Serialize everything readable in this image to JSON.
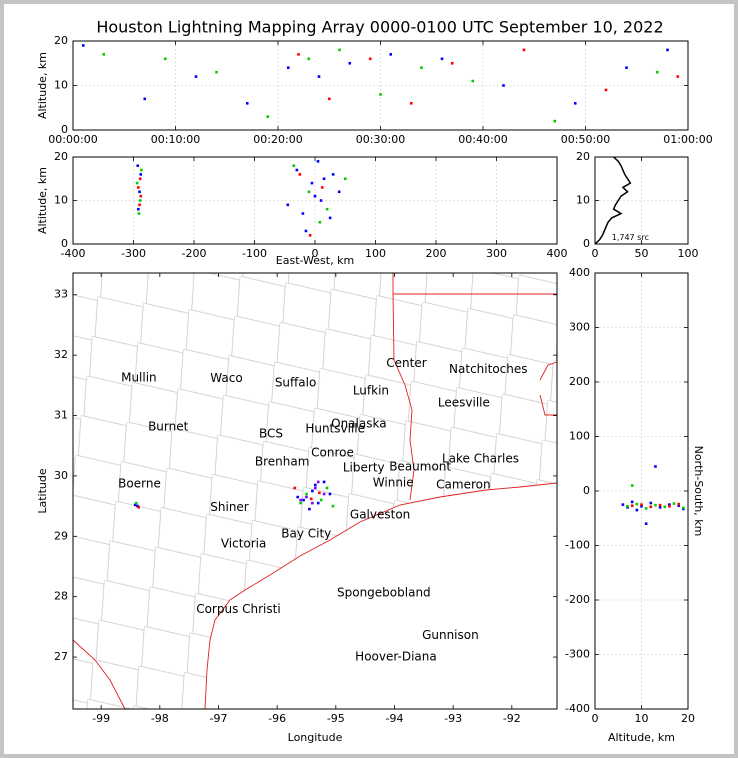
{
  "title": "Houston Lightning Mapping Array 0000-0100 UTC September 10, 2022",
  "chart_data": [
    {
      "type": "scatter",
      "ylabel": "Altitude, km",
      "grid": true,
      "xlim": [
        0,
        60
      ],
      "xticks": [
        {
          "value": 0,
          "label": "00:00:00"
        },
        {
          "value": 10,
          "label": "00:10:00"
        },
        {
          "value": 20,
          "label": "00:20:00"
        },
        {
          "value": 30,
          "label": "00:30:00"
        },
        {
          "value": 40,
          "label": "00:40:00"
        },
        {
          "value": 50,
          "label": "00:50:00"
        },
        {
          "value": 60,
          "label": "01:00:00"
        }
      ],
      "ylim": [
        0,
        20
      ],
      "yticks": [
        0,
        10,
        20
      ],
      "series": [
        {
          "color": "#0000ff",
          "x": [
            1,
            7,
            12,
            17,
            21,
            24,
            27,
            31,
            36,
            42,
            49,
            54,
            58
          ],
          "y": [
            19,
            7,
            12,
            6,
            14,
            12,
            15,
            17,
            16,
            10,
            6,
            14,
            18
          ]
        },
        {
          "color": "#00cc00",
          "x": [
            3,
            9,
            14,
            19,
            23,
            26,
            30,
            34,
            39,
            47,
            57
          ],
          "y": [
            17,
            16,
            13,
            3,
            16,
            18,
            8,
            14,
            11,
            2,
            13
          ]
        },
        {
          "color": "#ff0000",
          "x": [
            22,
            25,
            29,
            33,
            37,
            44,
            52,
            59
          ],
          "y": [
            17,
            7,
            16,
            6,
            15,
            18,
            9,
            12
          ]
        }
      ]
    },
    {
      "type": "scatter",
      "xlabel": "East-West, km",
      "ylabel": "Altitude, km",
      "grid": true,
      "xlim": [
        -400,
        400
      ],
      "xticks": [
        -400,
        -300,
        -200,
        -100,
        0,
        100,
        200,
        300,
        400
      ],
      "ylim": [
        0,
        20
      ],
      "yticks": [
        0,
        10,
        20
      ],
      "series": [
        {
          "color": "#0000ff",
          "x": [
            -292,
            -290,
            -288,
            -293,
            -5,
            10,
            -30,
            25,
            -15,
            40,
            -45,
            5,
            15,
            -20,
            0,
            30
          ],
          "y": [
            8,
            12,
            16,
            18,
            14,
            10,
            17,
            6,
            3,
            12,
            9,
            19,
            15,
            7,
            11,
            16
          ]
        },
        {
          "color": "#00cc00",
          "x": [
            -291,
            -289,
            -294,
            -287,
            -10,
            20,
            -35,
            50,
            8
          ],
          "y": [
            7,
            10,
            14,
            17,
            12,
            8,
            18,
            15,
            5
          ]
        },
        {
          "color": "#ff0000",
          "x": [
            -290,
            -292,
            -289,
            -288,
            -25,
            12,
            -8
          ],
          "y": [
            9,
            13,
            15,
            11,
            16,
            13,
            2
          ]
        }
      ]
    },
    {
      "type": "line",
      "grid": true,
      "xlim": [
        0,
        100
      ],
      "xticks": [
        0,
        50,
        100
      ],
      "ylim": [
        0,
        20
      ],
      "yticks": [
        0,
        10,
        20
      ],
      "annotations": [
        {
          "label": "1,747 src",
          "x": 18,
          "y": 1.5
        }
      ],
      "series": [
        {
          "color": "#000000",
          "x": [
            0,
            5,
            8,
            10,
            12,
            14,
            18,
            28,
            20,
            22,
            25,
            28,
            35,
            30,
            38,
            35,
            32,
            30,
            28,
            25,
            20
          ],
          "y": [
            0,
            1,
            2,
            3,
            4,
            5,
            6,
            7,
            8,
            9,
            10,
            11,
            12,
            13,
            14,
            15,
            16,
            17,
            18,
            19,
            20
          ]
        }
      ]
    },
    {
      "type": "scatter",
      "xlabel": "Longitude",
      "ylabel": "Latitude",
      "grid": false,
      "xlim": [
        -99.48,
        -91.23
      ],
      "xticks": [
        -99,
        -98,
        -97,
        -96,
        -95,
        -94,
        -93,
        -92
      ],
      "ylim": [
        26.14,
        33.36
      ],
      "yticks": [
        27,
        28,
        29,
        30,
        31,
        32,
        33
      ],
      "annotations": [
        {
          "label": "Mullin",
          "x": -98.66,
          "y": 31.62,
          "color": "#f4a460"
        },
        {
          "label": "Waco",
          "x": -97.14,
          "y": 31.61,
          "color": "#000000"
        },
        {
          "label": "Suffalo",
          "x": -96.04,
          "y": 31.54,
          "color": "#000000"
        },
        {
          "label": "Lufkin",
          "x": -94.71,
          "y": 31.41,
          "color": "#000000"
        },
        {
          "label": "Center",
          "x": -94.14,
          "y": 31.86,
          "color": "#000000"
        },
        {
          "label": "Natchitoches",
          "x": -93.07,
          "y": 31.76,
          "color": "#000000"
        },
        {
          "label": "Leesville",
          "x": -93.26,
          "y": 31.21,
          "color": "#000000"
        },
        {
          "label": "Burnet",
          "x": -98.2,
          "y": 30.81,
          "color": "#000000"
        },
        {
          "label": "BCS",
          "x": -96.31,
          "y": 30.69,
          "color": "#800000"
        },
        {
          "label": "Huntsville",
          "x": -95.52,
          "y": 30.78,
          "color": "#000000"
        },
        {
          "label": "Onalaska",
          "x": -95.08,
          "y": 30.86,
          "color": "#000000"
        },
        {
          "label": "Lake Charles",
          "x": -93.19,
          "y": 30.28,
          "color": "#000000"
        },
        {
          "label": "Conroe",
          "x": -95.42,
          "y": 30.38,
          "color": "#000000"
        },
        {
          "label": "Brenham",
          "x": -96.38,
          "y": 30.23,
          "color": "#000000"
        },
        {
          "label": "Liberty",
          "x": -94.88,
          "y": 30.13,
          "color": "#000000"
        },
        {
          "label": "Beaumont",
          "x": -94.09,
          "y": 30.15,
          "color": "#000000"
        },
        {
          "label": "Winnie",
          "x": -94.37,
          "y": 29.88,
          "color": "#000000"
        },
        {
          "label": "Cameron",
          "x": -93.29,
          "y": 29.85,
          "color": "#000000"
        },
        {
          "label": "Boerne",
          "x": -98.71,
          "y": 29.87,
          "color": "#000000"
        },
        {
          "label": "Bay City",
          "x": -95.93,
          "y": 29.04,
          "color": "#000000"
        },
        {
          "label": "Galveston",
          "x": -94.76,
          "y": 29.35,
          "color": "#000000"
        },
        {
          "label": "Shiner",
          "x": -97.14,
          "y": 29.48,
          "color": "#000000"
        },
        {
          "label": "Victoria",
          "x": -96.96,
          "y": 28.87,
          "color": "#000000"
        },
        {
          "label": "Corpus Christi",
          "x": -97.38,
          "y": 27.79,
          "color": "#000000"
        },
        {
          "label": "Spongebobland",
          "x": -94.98,
          "y": 28.06,
          "color": "#0000ff"
        },
        {
          "label": "Gunnison",
          "x": -93.53,
          "y": 27.36,
          "color": "#0000ff"
        },
        {
          "label": "Hoover-Diana",
          "x": -94.67,
          "y": 27.0,
          "color": "#0000ff"
        }
      ],
      "series": [
        {
          "color": "#0000ff",
          "x": [
            -98.42,
            -98.38,
            -95.55,
            -95.4,
            -95.3,
            -95.2,
            -95.65,
            -95.1,
            -95.45,
            -95.35
          ],
          "y": [
            29.52,
            29.5,
            29.6,
            29.75,
            29.55,
            29.9,
            29.65,
            29.7,
            29.45,
            29.85
          ]
        },
        {
          "color": "#8000ff",
          "x": [
            -95.5,
            -95.35,
            -95.2,
            -95.6,
            -95.4,
            -95.3
          ],
          "y": [
            29.65,
            29.8,
            29.7,
            29.6,
            29.55,
            29.9
          ]
        },
        {
          "color": "#00cc00",
          "x": [
            -98.4,
            -95.5,
            -95.25,
            -95.15,
            -95.6,
            -95.05
          ],
          "y": [
            29.55,
            29.7,
            29.6,
            29.8,
            29.55,
            29.5
          ]
        },
        {
          "color": "#ff0000",
          "x": [
            -98.36,
            -95.42,
            -95.28,
            -95.7
          ],
          "y": [
            29.48,
            29.62,
            29.72,
            29.8
          ]
        }
      ]
    },
    {
      "type": "scatter",
      "xlabel": "Altitude, km",
      "ylabel": "North-South, km",
      "ylabel_position": "right",
      "grid": true,
      "xlim": [
        0,
        20
      ],
      "xticks": [
        0,
        10,
        20
      ],
      "ylim": [
        -400,
        400
      ],
      "yticks": [
        -400,
        -300,
        -200,
        -100,
        0,
        100,
        200,
        300,
        400
      ],
      "series": [
        {
          "color": "#0000ff",
          "x": [
            6,
            7,
            8,
            9,
            10,
            12,
            14,
            16,
            18,
            19,
            13,
            11
          ],
          "y": [
            -25,
            -30,
            -20,
            -35,
            -28,
            -22,
            -30,
            -25,
            -27,
            -33,
            45,
            -60
          ]
        },
        {
          "color": "#00cc00",
          "x": [
            7,
            9,
            11,
            13,
            15,
            17,
            19,
            8
          ],
          "y": [
            -28,
            -24,
            -32,
            -26,
            -29,
            -23,
            -31,
            10
          ]
        },
        {
          "color": "#ff0000",
          "x": [
            8,
            10,
            12,
            14,
            16,
            18
          ],
          "y": [
            -27,
            -25,
            -29,
            -26,
            -28,
            -24
          ]
        }
      ]
    }
  ]
}
